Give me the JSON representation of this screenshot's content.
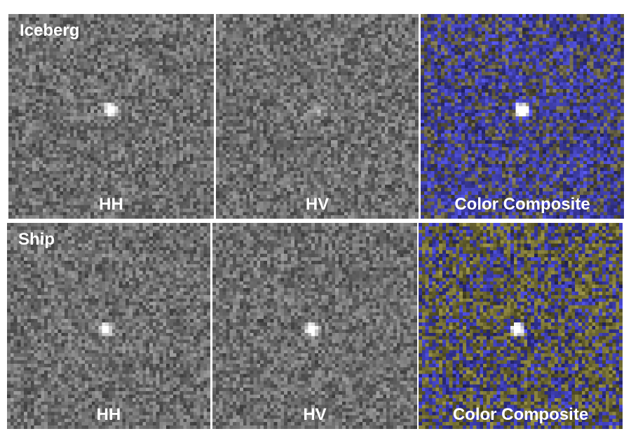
{
  "rows": [
    {
      "name": "Iceberg",
      "panels": [
        {
          "label": "HH",
          "mode": "gray",
          "target_brightness": "strong"
        },
        {
          "label": "HV",
          "mode": "gray",
          "target_brightness": "faint"
        },
        {
          "label": "Color Composite",
          "mode": "blue",
          "target_brightness": "strong"
        }
      ]
    },
    {
      "name": "Ship",
      "panels": [
        {
          "label": "HH",
          "mode": "gray",
          "target_brightness": "medium"
        },
        {
          "label": "HV",
          "mode": "gray",
          "target_brightness": "medium"
        },
        {
          "label": "Color Composite",
          "mode": "yellowblue",
          "target_brightness": "medium"
        }
      ]
    }
  ],
  "colors": {
    "composite_blue": "#3a3ad0",
    "composite_yellow": "#8a8030",
    "label": "#ffffff"
  }
}
